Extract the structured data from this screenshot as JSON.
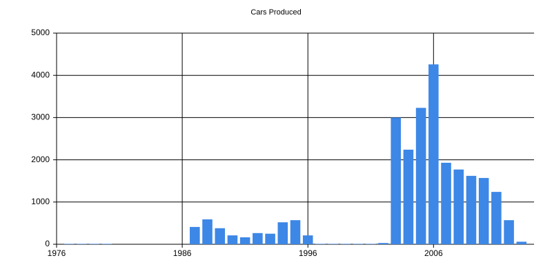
{
  "chart_data": {
    "type": "bar",
    "title": "Cars Produced",
    "x": [
      1977,
      1978,
      1979,
      1980,
      1987,
      1988,
      1989,
      1990,
      1991,
      1992,
      1993,
      1994,
      1995,
      1996,
      1997,
      1998,
      1999,
      2000,
      2001,
      2002,
      2003,
      2004,
      2005,
      2006,
      2007,
      2008,
      2009,
      2010,
      2011,
      2012,
      2013
    ],
    "values": [
      10,
      10,
      10,
      10,
      410,
      590,
      380,
      210,
      165,
      265,
      250,
      520,
      570,
      210,
      10,
      10,
      10,
      10,
      10,
      30,
      3000,
      2240,
      3230,
      4260,
      1930,
      1770,
      1620,
      1570,
      1240,
      570,
      60
    ],
    "color": "#3d87e6",
    "xlim": [
      1976,
      2014
    ],
    "xticks": [
      1976,
      1986,
      1996,
      2006
    ],
    "ylim": [
      0,
      5000
    ],
    "yticks": [
      0,
      1000,
      2000,
      3000,
      4000,
      5000
    ],
    "grid": true
  }
}
